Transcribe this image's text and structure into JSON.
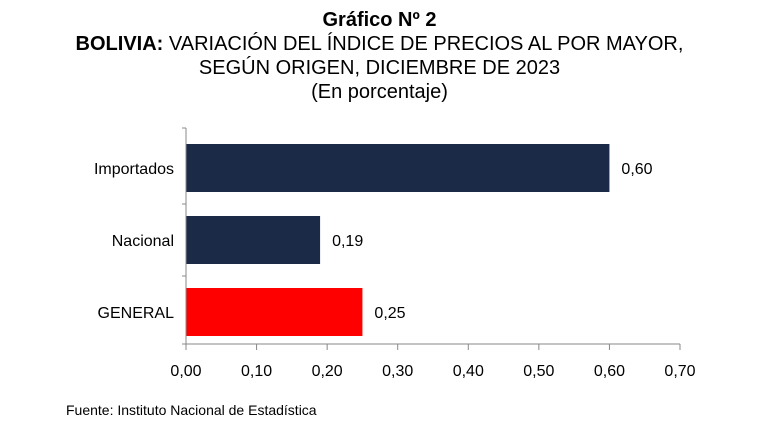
{
  "chart_data": {
    "type": "bar",
    "orientation": "horizontal",
    "title": "Gráfico Nº 2",
    "subtitle_bold": "BOLIVIA:",
    "subtitle_rest": " VARIACIÓN DEL ÍNDICE DE PRECIOS AL POR MAYOR,",
    "subtitle_line2": "SEGÚN ORIGEN, DICIEMBRE DE 2023",
    "unit": "(En porcentaje)",
    "categories": [
      "Importados",
      "Nacional",
      "GENERAL"
    ],
    "values": [
      0.6,
      0.19,
      0.25
    ],
    "value_labels": [
      "0,60",
      "0,19",
      "0,25"
    ],
    "bar_colors": [
      "#1b2a47",
      "#1b2a47",
      "#ff0000"
    ],
    "xlim": [
      0,
      0.7
    ],
    "xticks": [
      0,
      0.1,
      0.2,
      0.3,
      0.4,
      0.5,
      0.6,
      0.7
    ],
    "xtick_labels": [
      "0,00",
      "0,10",
      "0,20",
      "0,30",
      "0,40",
      "0,50",
      "0,60",
      "0,70"
    ],
    "grid": false,
    "legend": "none"
  },
  "source": "Fuente: Instituto Nacional de Estadística"
}
